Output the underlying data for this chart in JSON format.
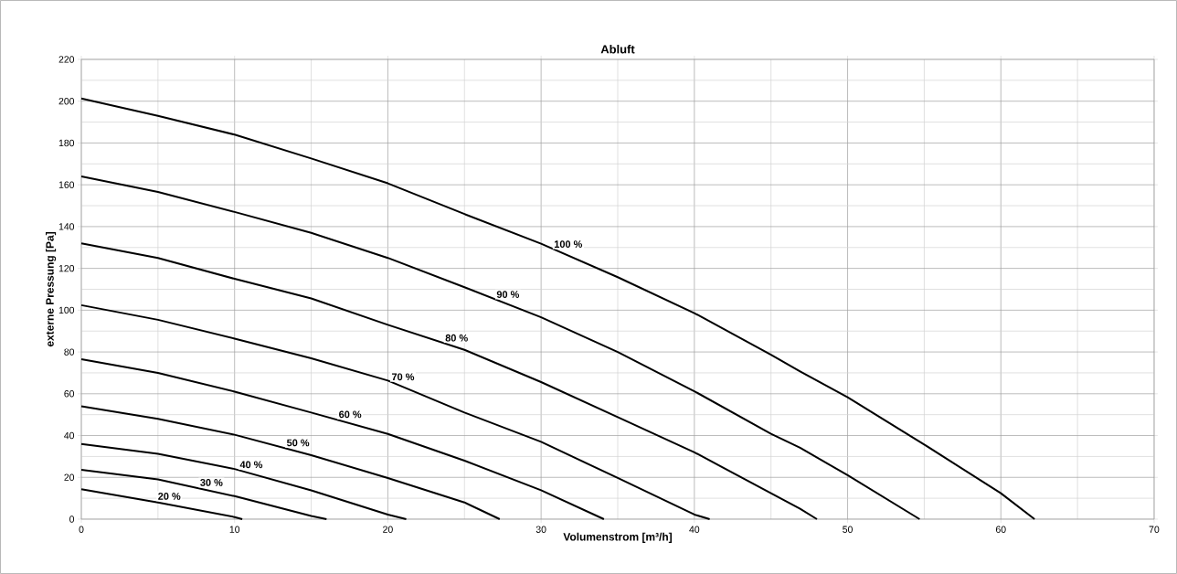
{
  "chart_data": {
    "type": "line",
    "title": "Abluft",
    "xlabel": "Volumenstrom  [m³/h]",
    "ylabel": "externe Pressung [Pa]",
    "xlim": [
      0,
      70
    ],
    "ylim": [
      0,
      220
    ],
    "xticks": [
      0,
      10,
      20,
      30,
      40,
      50,
      60,
      70
    ],
    "yticks": [
      0,
      20,
      40,
      60,
      80,
      100,
      120,
      140,
      160,
      180,
      200,
      220
    ],
    "grid": true,
    "marker": "none",
    "line_style": "solid",
    "series": [
      {
        "color": "#000000",
        "x": [
          0,
          5,
          10,
          15,
          20,
          25,
          30,
          35,
          40,
          45,
          46.9,
          50,
          55,
          60,
          62.2
        ],
        "values": [
          201.3,
          193,
          184,
          172.6,
          160.7,
          146,
          131.8,
          115.8,
          98.6,
          78.7,
          70.7,
          58.3,
          35.7,
          12.4,
          0
        ]
      },
      {
        "color": "#000000",
        "x": [
          0,
          5,
          10,
          15,
          20,
          25,
          30,
          35,
          40,
          45,
          46.9,
          50,
          54.7
        ],
        "values": [
          164,
          156.6,
          147,
          137,
          125,
          111,
          96.6,
          80,
          61.2,
          40.8,
          34.2,
          21,
          0
        ]
      },
      {
        "color": "#000000",
        "x": [
          0,
          5,
          10,
          15,
          20,
          25,
          30,
          35,
          40,
          45,
          46.9,
          48
        ],
        "values": [
          132,
          125,
          115,
          105.6,
          93,
          81,
          65.6,
          48.8,
          32,
          12.4,
          5,
          0
        ]
      },
      {
        "color": "#000000",
        "x": [
          0,
          5,
          10,
          15,
          20,
          25,
          30,
          35,
          40,
          41
        ],
        "values": [
          102.4,
          95.4,
          86.4,
          77,
          66.3,
          51,
          37,
          19.7,
          2.2,
          0
        ]
      },
      {
        "color": "#000000",
        "x": [
          0,
          5,
          10,
          15,
          20,
          25,
          30,
          34.1
        ],
        "values": [
          76.5,
          70,
          61,
          51,
          40.8,
          28,
          13.8,
          0
        ]
      },
      {
        "color": "#000000",
        "x": [
          0,
          5,
          10,
          15,
          20,
          25,
          27.3
        ],
        "values": [
          54,
          48,
          40.4,
          30.6,
          19.7,
          8,
          0
        ]
      },
      {
        "color": "#000000",
        "x": [
          0,
          5,
          10,
          15,
          20,
          21.2
        ],
        "values": [
          36,
          31.3,
          24,
          13.8,
          2.2,
          0
        ]
      },
      {
        "color": "#000000",
        "x": [
          0,
          5,
          10,
          15,
          16
        ],
        "values": [
          23.6,
          19,
          11,
          1.5,
          0
        ]
      },
      {
        "color": "#000000",
        "x": [
          0,
          5,
          10,
          10.5
        ],
        "values": [
          14.3,
          8,
          1,
          0
        ]
      }
    ],
    "annotations": [
      "100 %",
      "90 %",
      "80 %",
      "70 %",
      "60 %",
      "50 %",
      "40 %",
      "30 %",
      "20 %"
    ]
  }
}
